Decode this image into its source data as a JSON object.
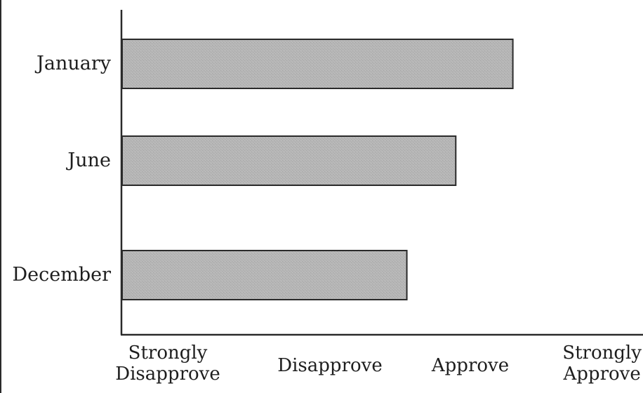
{
  "chart_data": {
    "type": "bar",
    "orientation": "horizontal",
    "categories": [
      "January",
      "June",
      "December"
    ],
    "values": [
      3.4,
      3.05,
      2.75
    ],
    "xlim": [
      1,
      4
    ],
    "x_tick_labels": [
      {
        "value": 1,
        "lines": [
          "Strongly",
          "Disapprove"
        ]
      },
      {
        "value": 2,
        "lines": [
          "Disapprove"
        ]
      },
      {
        "value": 3,
        "lines": [
          "Approve"
        ]
      },
      {
        "value": 4,
        "lines": [
          "Strongly",
          "Approve"
        ]
      }
    ],
    "title": "",
    "xlabel": "",
    "ylabel": "",
    "grid": false,
    "colors": {
      "bar_fill": "#b4b4b4",
      "bar_stroke": "#2a2a2a",
      "axis": "#2a2a2a",
      "text": "#1e1e1e"
    }
  }
}
